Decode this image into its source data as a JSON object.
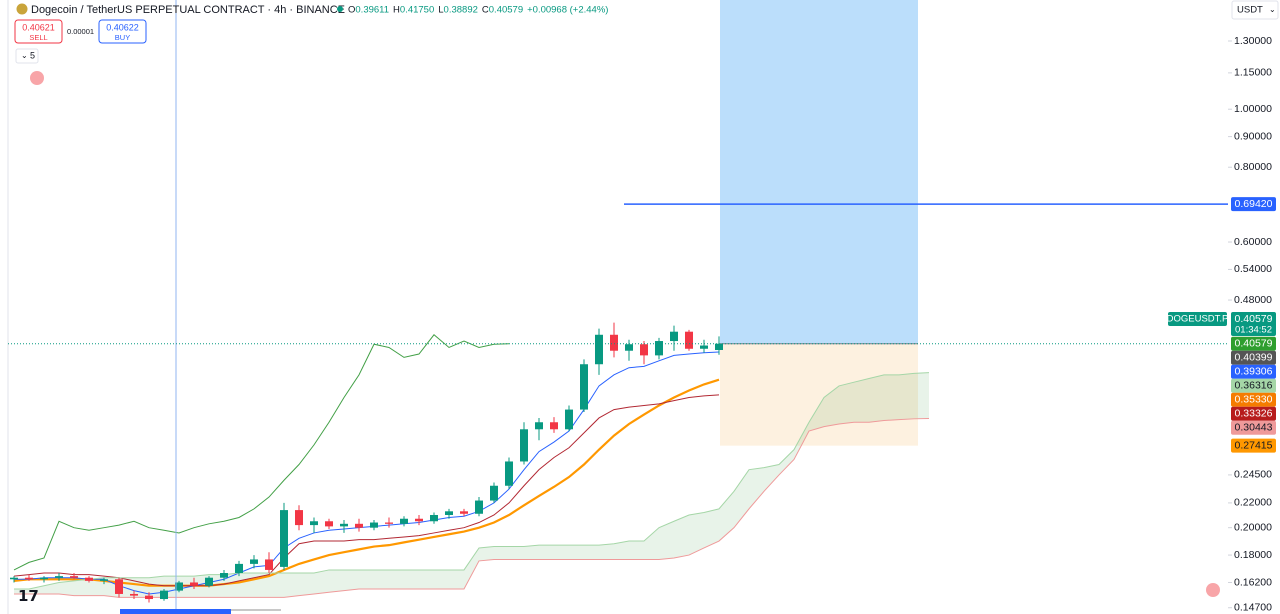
{
  "header": {
    "title": "Dogecoin / TetherUS PERPETUAL CONTRACT · 4h · BINANCE",
    "legend": [
      {
        "key": "O",
        "value": "0.39611"
      },
      {
        "key": "H",
        "value": "0.41750"
      },
      {
        "key": "L",
        "value": "0.38892"
      },
      {
        "key": "C",
        "value": "0.40579"
      },
      {
        "key": "",
        "value": "+0.00968 (+2.44%)"
      }
    ],
    "sell_price": "0.40621",
    "sell": "SELL",
    "spread": "0.00001",
    "buy_price": "0.40622",
    "buy": "BUY",
    "collapse": "5",
    "currency": "USDT"
  },
  "chart_data": {
    "type": "candlestick",
    "log_scale": true,
    "ylim": [
      0.1435,
      1.522
    ],
    "yticks": [
      {
        "value": 1.3,
        "label": "1.30000"
      },
      {
        "value": 1.15,
        "label": "1.15000"
      },
      {
        "value": 1.0,
        "label": "1.00000"
      },
      {
        "value": 0.9,
        "label": "0.90000"
      },
      {
        "value": 0.8,
        "label": "0.80000"
      },
      {
        "value": 0.6,
        "label": "0.60000"
      },
      {
        "value": 0.54,
        "label": "0.54000"
      },
      {
        "value": 0.48,
        "label": "0.48000"
      },
      {
        "value": 0.245,
        "label": "0.24500"
      },
      {
        "value": 0.22,
        "label": "0.22000"
      },
      {
        "value": 0.2,
        "label": "0.20000"
      },
      {
        "value": 0.18,
        "label": "0.18000"
      },
      {
        "value": 0.162,
        "label": "0.16200"
      },
      {
        "value": 0.147,
        "label": "0.14700"
      }
    ],
    "up_color": "#089981",
    "down_color": "#f23645",
    "open": [
      0.164,
      0.165,
      0.164,
      0.165,
      0.166,
      0.165,
      0.163,
      0.164,
      0.155,
      0.154,
      0.152,
      0.157,
      0.162,
      0.16,
      0.165,
      0.168,
      0.174,
      0.177,
      0.172,
      0.214,
      0.202,
      0.205,
      0.201,
      0.203,
      0.2,
      0.204,
      0.203,
      0.207,
      0.205,
      0.21,
      0.213,
      0.211,
      0.222,
      0.235,
      0.258,
      0.292,
      0.3,
      0.292,
      0.315,
      0.375,
      0.42,
      0.395,
      0.405,
      0.388,
      0.41,
      0.425,
      0.398,
      0.39611,
      null,
      null,
      null,
      null,
      null,
      null,
      null,
      null,
      null,
      null,
      null,
      null,
      null,
      null
    ],
    "high": [
      0.166,
      0.167,
      0.166,
      0.168,
      0.168,
      0.166,
      0.165,
      0.165,
      0.157,
      0.156,
      0.158,
      0.163,
      0.165,
      0.166,
      0.17,
      0.176,
      0.18,
      0.182,
      0.22,
      0.218,
      0.208,
      0.207,
      0.206,
      0.207,
      0.206,
      0.208,
      0.209,
      0.21,
      0.212,
      0.215,
      0.215,
      0.225,
      0.238,
      0.262,
      0.3,
      0.305,
      0.306,
      0.32,
      0.382,
      0.43,
      0.44,
      0.412,
      0.41,
      0.415,
      0.435,
      0.428,
      0.412,
      0.4175,
      null,
      null,
      null,
      null,
      null,
      null,
      null,
      null,
      null,
      null,
      null,
      null,
      null,
      null
    ],
    "low": [
      0.162,
      0.163,
      0.162,
      0.163,
      0.164,
      0.162,
      0.161,
      0.153,
      0.152,
      0.15,
      0.151,
      0.156,
      0.158,
      0.159,
      0.163,
      0.166,
      0.171,
      0.168,
      0.17,
      0.198,
      0.196,
      0.199,
      0.196,
      0.197,
      0.198,
      0.2,
      0.201,
      0.202,
      0.203,
      0.207,
      0.209,
      0.209,
      0.22,
      0.232,
      0.255,
      0.28,
      0.288,
      0.29,
      0.312,
      0.36,
      0.385,
      0.38,
      0.375,
      0.382,
      0.395,
      0.395,
      0.392,
      0.38892,
      null,
      null,
      null,
      null,
      null,
      null,
      null,
      null,
      null,
      null,
      null,
      null,
      null,
      null
    ],
    "close": [
      0.165,
      0.164,
      0.165,
      0.166,
      0.165,
      0.163,
      0.164,
      0.155,
      0.154,
      0.152,
      0.157,
      0.162,
      0.16,
      0.165,
      0.168,
      0.174,
      0.177,
      0.17,
      0.214,
      0.202,
      0.205,
      0.201,
      0.203,
      0.2,
      0.204,
      0.203,
      0.207,
      0.205,
      0.21,
      0.213,
      0.211,
      0.222,
      0.235,
      0.258,
      0.292,
      0.3,
      0.292,
      0.315,
      0.375,
      0.42,
      0.395,
      0.405,
      0.388,
      0.41,
      0.425,
      0.398,
      0.403,
      0.40579,
      null,
      null,
      null,
      null,
      null,
      null,
      null,
      null,
      null,
      null,
      null,
      null,
      null,
      null
    ],
    "series": [
      {
        "color": "#ff9800",
        "width": 2.2,
        "values": [
          0.163,
          0.164,
          0.164,
          0.164,
          0.164,
          0.164,
          0.163,
          0.162,
          0.161,
          0.16,
          0.16,
          0.16,
          0.16,
          0.16,
          0.161,
          0.162,
          0.164,
          0.166,
          0.17,
          0.174,
          0.177,
          0.18,
          0.182,
          0.184,
          0.186,
          0.187,
          0.189,
          0.191,
          0.193,
          0.195,
          0.197,
          0.2,
          0.204,
          0.21,
          0.218,
          0.226,
          0.234,
          0.243,
          0.255,
          0.27,
          0.285,
          0.298,
          0.309,
          0.32,
          0.33,
          0.339,
          0.347,
          0.3533,
          null,
          null,
          null,
          null,
          null,
          null,
          null,
          null,
          null,
          null,
          null,
          null,
          null,
          null
        ]
      },
      {
        "color": "#2962ff",
        "width": 1,
        "values": [
          0.164,
          0.164,
          0.165,
          0.165,
          0.165,
          0.164,
          0.164,
          0.16,
          0.157,
          0.155,
          0.156,
          0.158,
          0.16,
          0.162,
          0.164,
          0.168,
          0.172,
          0.173,
          0.185,
          0.192,
          0.196,
          0.198,
          0.199,
          0.2,
          0.201,
          0.202,
          0.203,
          0.204,
          0.206,
          0.208,
          0.209,
          0.213,
          0.22,
          0.232,
          0.25,
          0.268,
          0.278,
          0.29,
          0.315,
          0.345,
          0.36,
          0.37,
          0.372,
          0.38,
          0.388,
          0.39,
          0.392,
          0.39306,
          null,
          null,
          null,
          null,
          null,
          null,
          null,
          null,
          null,
          null,
          null,
          null,
          null,
          null
        ]
      },
      {
        "color": "#b22833",
        "width": 1,
        "values": [
          0.166,
          0.167,
          0.168,
          0.168,
          0.167,
          0.167,
          0.166,
          0.165,
          0.163,
          0.161,
          0.16,
          0.16,
          0.16,
          0.16,
          0.161,
          0.163,
          0.165,
          0.167,
          0.178,
          0.188,
          0.19,
          0.19,
          0.19,
          0.191,
          0.191,
          0.192,
          0.193,
          0.194,
          0.196,
          0.198,
          0.2,
          0.204,
          0.21,
          0.22,
          0.235,
          0.25,
          0.262,
          0.272,
          0.288,
          0.305,
          0.315,
          0.318,
          0.32,
          0.322,
          0.326,
          0.33,
          0.332,
          0.33326,
          null,
          null,
          null,
          null,
          null,
          null,
          null,
          null,
          null,
          null,
          null,
          null,
          null,
          null
        ]
      },
      {
        "color": "#43a047",
        "width": 1,
        "values": [
          0.17,
          0.175,
          0.178,
          0.205,
          0.2,
          0.198,
          0.2,
          0.202,
          0.205,
          0.2,
          0.198,
          0.196,
          0.2,
          0.203,
          0.205,
          0.208,
          0.215,
          0.225,
          0.24,
          0.255,
          0.275,
          0.3,
          0.33,
          0.36,
          0.405,
          0.4,
          0.385,
          0.39,
          0.42,
          0.4,
          0.41,
          0.4,
          0.405,
          0.4058,
          null,
          null,
          null,
          null,
          null,
          null,
          null,
          null,
          null,
          null,
          null,
          null,
          null,
          null,
          null,
          null,
          null,
          null,
          null,
          null,
          null,
          null,
          null,
          null,
          null,
          null,
          null,
          null
        ]
      },
      {
        "color": "#a5d6a7",
        "width": 1,
        "values": [
          0.158,
          0.158,
          0.16,
          0.162,
          0.163,
          0.164,
          0.165,
          0.165,
          0.165,
          0.165,
          0.166,
          0.166,
          0.166,
          0.167,
          0.167,
          0.168,
          0.168,
          0.168,
          0.168,
          0.168,
          0.168,
          0.17,
          0.17,
          0.17,
          0.17,
          0.17,
          0.17,
          0.17,
          0.17,
          0.17,
          0.17,
          0.185,
          0.186,
          0.186,
          0.186,
          0.187,
          0.187,
          0.187,
          0.187,
          0.187,
          0.188,
          0.19,
          0.19,
          0.2,
          0.205,
          0.21,
          0.212,
          0.215,
          0.23,
          0.25,
          0.252,
          0.255,
          0.27,
          0.3,
          0.33,
          0.345,
          0.35,
          0.355,
          0.36,
          0.36,
          0.362,
          0.36316
        ]
      },
      {
        "color": "#ef9a9a",
        "width": 1,
        "values": [
          0.155,
          0.155,
          0.155,
          0.155,
          0.154,
          0.154,
          0.154,
          0.153,
          0.153,
          0.153,
          0.153,
          0.153,
          0.153,
          0.153,
          0.153,
          0.153,
          0.153,
          0.153,
          0.153,
          0.154,
          0.155,
          0.156,
          0.157,
          0.158,
          0.158,
          0.158,
          0.158,
          0.158,
          0.158,
          0.158,
          0.158,
          0.176,
          0.177,
          0.177,
          0.177,
          0.177,
          0.177,
          0.177,
          0.177,
          0.177,
          0.177,
          0.177,
          0.177,
          0.177,
          0.178,
          0.18,
          0.185,
          0.19,
          0.2,
          0.215,
          0.23,
          0.245,
          0.26,
          0.29,
          0.295,
          0.298,
          0.3,
          0.3,
          0.302,
          0.303,
          0.304,
          0.30443
        ]
      }
    ],
    "cloud_color": "#43a047",
    "position": {
      "entry": 0.40579,
      "stop": 0.27415,
      "target": 1.522
    },
    "hline": {
      "value": 0.6942,
      "label": "0.69420",
      "color": "#2962ff"
    },
    "symbol_tag": {
      "symbol": "DOGEUSDT.P",
      "label": "0.40579",
      "countdown": "01:34:52",
      "color": "#089981"
    },
    "price_tags": [
      {
        "value": 0.40579,
        "label": "0.40579",
        "color": "#2e9e2e",
        "text_color": "#fff"
      },
      {
        "value": 0.40399,
        "label": "0.40399",
        "color": "#555555",
        "text_color": "#fff"
      },
      {
        "value": 0.39306,
        "label": "0.39306",
        "color": "#2962ff",
        "text_color": "#fff"
      },
      {
        "value": 0.36316,
        "label": "0.36316",
        "color": "#a5d6a7",
        "text_color": "#131722"
      },
      {
        "value": 0.3533,
        "label": "0.35330",
        "color": "#f57c00",
        "text_color": "#fff"
      },
      {
        "value": 0.33326,
        "label": "0.33326",
        "color": "#b71c1c",
        "text_color": "#fff"
      },
      {
        "value": 0.30443,
        "label": "0.30443",
        "color": "#ef9a9a",
        "text_color": "#131722"
      },
      {
        "value": 0.27415,
        "label": "0.27415",
        "color": "#ff9800",
        "text_color": "#131722"
      }
    ]
  }
}
